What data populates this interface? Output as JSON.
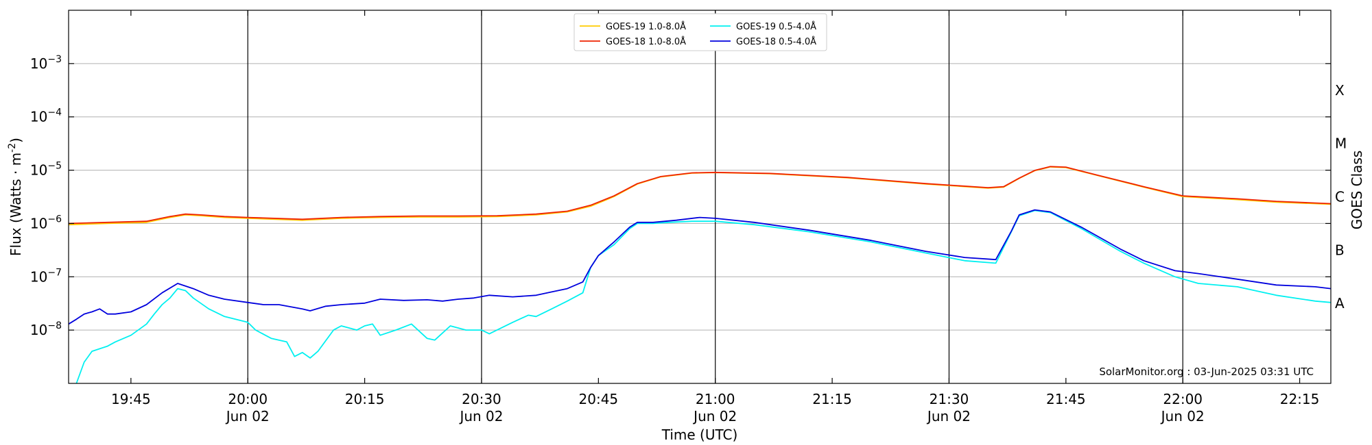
{
  "chart_data": {
    "type": "line",
    "title": "",
    "xlabel": "Time (UTC)",
    "ylabel": "Flux (Watts · m",
    "ylabel_sup": "-2",
    "ylabel_suffix": ")",
    "right_ylabel": "GOES Class",
    "y_scale": "log",
    "ylim": [
      1e-09,
      0.01
    ],
    "x_unit": "minutes since 19:37 UTC, Jun 02 2025",
    "xlim": [
      0,
      162
    ],
    "grid": "horizontal",
    "legend_position": "top-center",
    "x_ticks": [
      {
        "x": 8,
        "label": "19:45",
        "sub": ""
      },
      {
        "x": 23,
        "label": "20:00",
        "sub": "Jun 02"
      },
      {
        "x": 38,
        "label": "20:15",
        "sub": ""
      },
      {
        "x": 53,
        "label": "20:30",
        "sub": "Jun 02"
      },
      {
        "x": 68,
        "label": "20:45",
        "sub": ""
      },
      {
        "x": 83,
        "label": "21:00",
        "sub": "Jun 02"
      },
      {
        "x": 98,
        "label": "21:15",
        "sub": ""
      },
      {
        "x": 113,
        "label": "21:30",
        "sub": "Jun 02"
      },
      {
        "x": 128,
        "label": "21:45",
        "sub": ""
      },
      {
        "x": 143,
        "label": "22:00",
        "sub": "Jun 02"
      },
      {
        "x": 158,
        "label": "22:15",
        "sub": ""
      }
    ],
    "vlines": [
      23,
      53,
      83,
      113,
      143
    ],
    "y_ticks": [
      {
        "exp": -8,
        "base": "10",
        "sup": "−8"
      },
      {
        "exp": -7,
        "base": "10",
        "sup": "−7"
      },
      {
        "exp": -6,
        "base": "10",
        "sup": "−6"
      },
      {
        "exp": -5,
        "base": "10",
        "sup": "−5"
      },
      {
        "exp": -4,
        "base": "10",
        "sup": "−4"
      },
      {
        "exp": -3,
        "base": "10",
        "sup": "−3"
      }
    ],
    "classes": [
      {
        "label": "A",
        "exp": -7.5
      },
      {
        "label": "B",
        "exp": -6.5
      },
      {
        "label": "C",
        "exp": -5.5
      },
      {
        "label": "M",
        "exp": -4.5
      },
      {
        "label": "X",
        "exp": -3.5
      }
    ],
    "series": [
      {
        "name": "GOES-19 1.0-8.0Å",
        "color": "#ffcc00",
        "points": [
          [
            0,
            9.5e-07
          ],
          [
            5,
            1e-06
          ],
          [
            10,
            1.05e-06
          ],
          [
            13,
            1.3e-06
          ],
          [
            15,
            1.45e-06
          ],
          [
            17,
            1.4e-06
          ],
          [
            20,
            1.3e-06
          ],
          [
            23,
            1.25e-06
          ],
          [
            30,
            1.15e-06
          ],
          [
            35,
            1.25e-06
          ],
          [
            40,
            1.3e-06
          ],
          [
            45,
            1.32e-06
          ],
          [
            50,
            1.32e-06
          ],
          [
            55,
            1.35e-06
          ],
          [
            60,
            1.45e-06
          ],
          [
            64,
            1.65e-06
          ],
          [
            67,
            2.1e-06
          ],
          [
            70,
            3.2e-06
          ],
          [
            73,
            5.5e-06
          ],
          [
            76,
            7.5e-06
          ],
          [
            80,
            8.8e-06
          ],
          [
            83,
            9e-06
          ],
          [
            90,
            8.6e-06
          ],
          [
            100,
            7.2e-06
          ],
          [
            110,
            5.5e-06
          ],
          [
            118,
            4.6e-06
          ],
          [
            120,
            4.8e-06
          ],
          [
            122,
            7e-06
          ],
          [
            124,
            9.8e-06
          ],
          [
            126,
            1.15e-05
          ],
          [
            128,
            1.12e-05
          ],
          [
            132,
            8e-06
          ],
          [
            138,
            4.8e-06
          ],
          [
            143,
            3.2e-06
          ],
          [
            150,
            2.8e-06
          ],
          [
            155,
            2.5e-06
          ],
          [
            162,
            2.3e-06
          ]
        ]
      },
      {
        "name": "GOES-18 1.0-8.0Å",
        "color": "#ee2200",
        "points": [
          [
            0,
            1e-06
          ],
          [
            5,
            1.05e-06
          ],
          [
            10,
            1.1e-06
          ],
          [
            13,
            1.35e-06
          ],
          [
            15,
            1.5e-06
          ],
          [
            17,
            1.45e-06
          ],
          [
            20,
            1.35e-06
          ],
          [
            23,
            1.3e-06
          ],
          [
            30,
            1.2e-06
          ],
          [
            35,
            1.3e-06
          ],
          [
            40,
            1.35e-06
          ],
          [
            45,
            1.38e-06
          ],
          [
            50,
            1.38e-06
          ],
          [
            55,
            1.4e-06
          ],
          [
            60,
            1.5e-06
          ],
          [
            64,
            1.7e-06
          ],
          [
            67,
            2.2e-06
          ],
          [
            70,
            3.3e-06
          ],
          [
            73,
            5.6e-06
          ],
          [
            76,
            7.6e-06
          ],
          [
            80,
            8.9e-06
          ],
          [
            83,
            9.1e-06
          ],
          [
            90,
            8.7e-06
          ],
          [
            100,
            7.3e-06
          ],
          [
            110,
            5.6e-06
          ],
          [
            118,
            4.7e-06
          ],
          [
            120,
            4.9e-06
          ],
          [
            122,
            7.1e-06
          ],
          [
            124,
            9.9e-06
          ],
          [
            126,
            1.17e-05
          ],
          [
            128,
            1.14e-05
          ],
          [
            132,
            8.1e-06
          ],
          [
            138,
            4.9e-06
          ],
          [
            143,
            3.3e-06
          ],
          [
            150,
            2.9e-06
          ],
          [
            155,
            2.6e-06
          ],
          [
            162,
            2.35e-06
          ]
        ]
      },
      {
        "name": "GOES-19 0.5-4.0Å",
        "color": "#00f0f0",
        "points": [
          [
            1,
            1e-09
          ],
          [
            2,
            2.5e-09
          ],
          [
            3,
            4e-09
          ],
          [
            5,
            5e-09
          ],
          [
            6,
            6e-09
          ],
          [
            8,
            8e-09
          ],
          [
            10,
            1.3e-08
          ],
          [
            11,
            2e-08
          ],
          [
            12,
            3e-08
          ],
          [
            13,
            4e-08
          ],
          [
            14,
            6e-08
          ],
          [
            15,
            5.5e-08
          ],
          [
            16,
            4e-08
          ],
          [
            18,
            2.5e-08
          ],
          [
            20,
            1.8e-08
          ],
          [
            23,
            1.4e-08
          ],
          [
            24,
            1e-08
          ],
          [
            26,
            7e-09
          ],
          [
            28,
            6e-09
          ],
          [
            29,
            3.2e-09
          ],
          [
            30,
            3.8e-09
          ],
          [
            31,
            3e-09
          ],
          [
            32,
            4e-09
          ],
          [
            34,
            1e-08
          ],
          [
            35,
            1.2e-08
          ],
          [
            37,
            1e-08
          ],
          [
            38,
            1.2e-08
          ],
          [
            39,
            1.3e-08
          ],
          [
            40,
            8e-09
          ],
          [
            42,
            1e-08
          ],
          [
            44,
            1.3e-08
          ],
          [
            46,
            7e-09
          ],
          [
            47,
            6.5e-09
          ],
          [
            49,
            1.2e-08
          ],
          [
            51,
            1e-08
          ],
          [
            53,
            1e-08
          ],
          [
            54,
            8.5e-09
          ],
          [
            57,
            1.4e-08
          ],
          [
            59,
            1.9e-08
          ],
          [
            60,
            1.8e-08
          ],
          [
            62,
            2.5e-08
          ],
          [
            64,
            3.5e-08
          ],
          [
            66,
            5e-08
          ],
          [
            67,
            1.5e-07
          ],
          [
            68,
            2.5e-07
          ],
          [
            70,
            4e-07
          ],
          [
            72,
            8e-07
          ],
          [
            73,
            1e-06
          ],
          [
            75,
            1e-06
          ],
          [
            77,
            1.05e-06
          ],
          [
            80,
            1.1e-06
          ],
          [
            83,
            1.1e-06
          ],
          [
            88,
            9.5e-07
          ],
          [
            95,
            7e-07
          ],
          [
            103,
            4.5e-07
          ],
          [
            110,
            2.8e-07
          ],
          [
            115,
            2e-07
          ],
          [
            119,
            1.8e-07
          ],
          [
            121,
            7e-07
          ],
          [
            122,
            1.4e-06
          ],
          [
            124,
            1.75e-06
          ],
          [
            126,
            1.6e-06
          ],
          [
            130,
            8e-07
          ],
          [
            135,
            3e-07
          ],
          [
            138,
            1.8e-07
          ],
          [
            142,
            1e-07
          ],
          [
            145,
            7.5e-08
          ],
          [
            150,
            6.5e-08
          ],
          [
            155,
            4.5e-08
          ],
          [
            160,
            3.5e-08
          ],
          [
            162,
            3.3e-08
          ]
        ]
      },
      {
        "name": "GOES-18 0.5-4.0Å",
        "color": "#0000dd",
        "points": [
          [
            0,
            1.3e-08
          ],
          [
            1,
            1.6e-08
          ],
          [
            2,
            2e-08
          ],
          [
            3,
            2.2e-08
          ],
          [
            4,
            2.5e-08
          ],
          [
            5,
            2e-08
          ],
          [
            6,
            2e-08
          ],
          [
            8,
            2.2e-08
          ],
          [
            10,
            3e-08
          ],
          [
            12,
            5e-08
          ],
          [
            14,
            7.5e-08
          ],
          [
            16,
            6e-08
          ],
          [
            18,
            4.5e-08
          ],
          [
            20,
            3.8e-08
          ],
          [
            23,
            3.3e-08
          ],
          [
            25,
            3e-08
          ],
          [
            27,
            3e-08
          ],
          [
            30,
            2.5e-08
          ],
          [
            31,
            2.3e-08
          ],
          [
            33,
            2.8e-08
          ],
          [
            35,
            3e-08
          ],
          [
            38,
            3.2e-08
          ],
          [
            40,
            3.8e-08
          ],
          [
            43,
            3.6e-08
          ],
          [
            46,
            3.7e-08
          ],
          [
            48,
            3.5e-08
          ],
          [
            50,
            3.8e-08
          ],
          [
            52,
            4e-08
          ],
          [
            54,
            4.5e-08
          ],
          [
            57,
            4.2e-08
          ],
          [
            60,
            4.5e-08
          ],
          [
            62,
            5.2e-08
          ],
          [
            64,
            6e-08
          ],
          [
            66,
            8e-08
          ],
          [
            67,
            1.5e-07
          ],
          [
            68,
            2.5e-07
          ],
          [
            70,
            4.5e-07
          ],
          [
            72,
            8.5e-07
          ],
          [
            73,
            1.05e-06
          ],
          [
            75,
            1.05e-06
          ],
          [
            78,
            1.15e-06
          ],
          [
            81,
            1.3e-06
          ],
          [
            83,
            1.25e-06
          ],
          [
            88,
            1.05e-06
          ],
          [
            95,
            7.5e-07
          ],
          [
            103,
            4.8e-07
          ],
          [
            110,
            3e-07
          ],
          [
            115,
            2.3e-07
          ],
          [
            119,
            2.1e-07
          ],
          [
            121,
            7.2e-07
          ],
          [
            122,
            1.45e-06
          ],
          [
            124,
            1.8e-06
          ],
          [
            126,
            1.65e-06
          ],
          [
            130,
            8.5e-07
          ],
          [
            135,
            3.3e-07
          ],
          [
            138,
            2e-07
          ],
          [
            142,
            1.3e-07
          ],
          [
            145,
            1.15e-07
          ],
          [
            150,
            9e-08
          ],
          [
            155,
            7e-08
          ],
          [
            160,
            6.5e-08
          ],
          [
            162,
            6e-08
          ]
        ]
      }
    ],
    "watermark": "SolarMonitor.org : 03-Jun-2025 03:31 UTC"
  }
}
